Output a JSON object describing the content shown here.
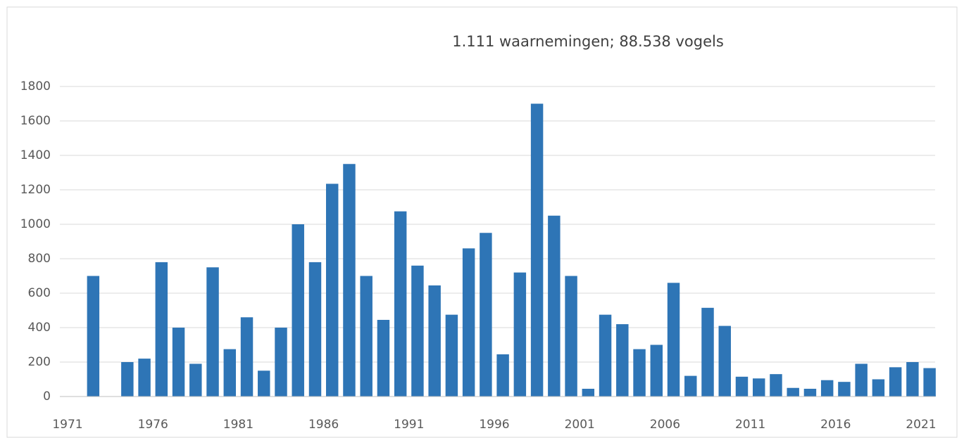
{
  "chart_data": {
    "type": "bar",
    "title": "1.111 waarnemingen; 88.538 vogels",
    "categories": [
      "1971",
      null,
      null,
      null,
      null,
      "1976",
      null,
      null,
      null,
      null,
      "1981",
      null,
      null,
      null,
      null,
      "1986",
      null,
      null,
      null,
      null,
      "1991",
      null,
      null,
      null,
      null,
      "1996",
      null,
      null,
      null,
      null,
      "2001",
      null,
      null,
      null,
      null,
      "2006",
      null,
      null,
      null,
      null,
      "2011",
      null,
      null,
      null,
      null,
      "2016",
      null,
      null,
      null,
      null,
      "2021"
    ],
    "values": [
      null,
      700,
      null,
      200,
      220,
      780,
      400,
      190,
      750,
      275,
      460,
      150,
      400,
      1000,
      780,
      1235,
      1350,
      700,
      445,
      1075,
      760,
      645,
      475,
      860,
      950,
      245,
      720,
      1700,
      1050,
      700,
      45,
      475,
      420,
      275,
      300,
      660,
      120,
      515,
      410,
      115,
      105,
      130,
      50,
      45,
      95,
      85,
      190,
      100,
      170,
      200,
      165
    ],
    "color": "#2e75b6",
    "ylim": [
      0,
      1800
    ],
    "yticks": [
      0,
      200,
      400,
      600,
      800,
      1000,
      1200,
      1400,
      1600,
      1800
    ],
    "grid": true
  }
}
